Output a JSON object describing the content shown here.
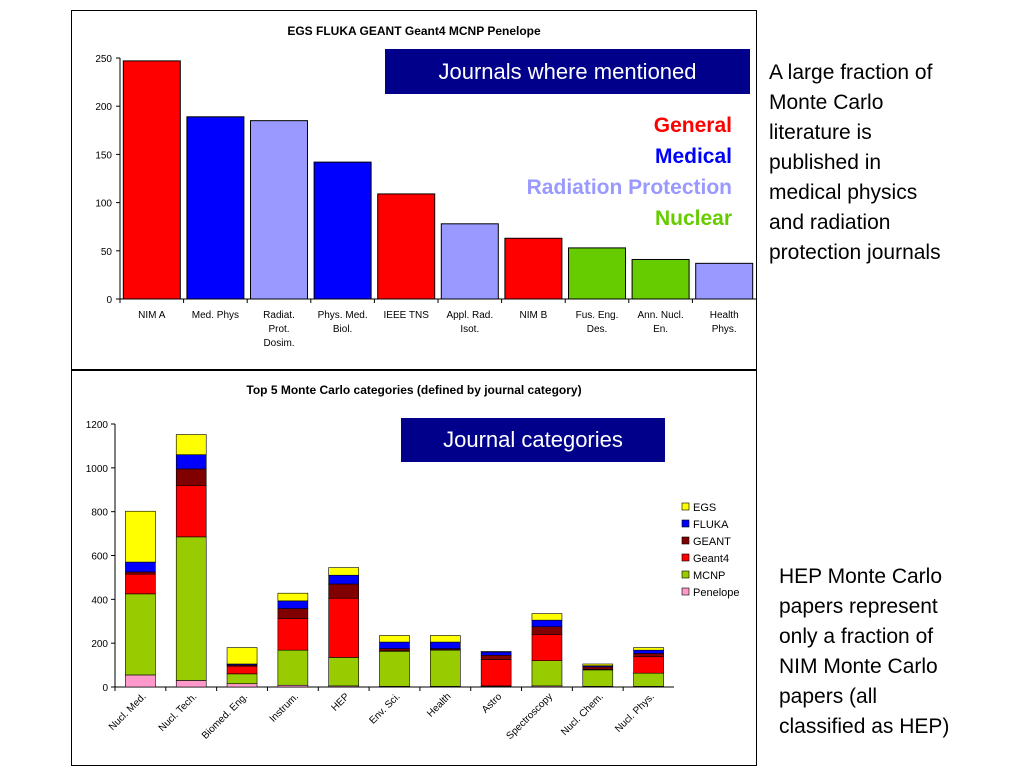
{
  "colors": {
    "general": "#ff0000",
    "medical": "#0000ff",
    "radiation_protection": "#9999ff",
    "nuclear": "#66cc00",
    "banner_bg": "#00008b"
  },
  "top_panel": {
    "banner": "Journals where mentioned",
    "legend": [
      "General",
      "Medical",
      "Radiation Protection",
      "Nuclear"
    ]
  },
  "bottom_panel": {
    "banner": "Journal categories"
  },
  "side_text_1": [
    "A large fraction of",
    "Monte Carlo",
    "literature is",
    "published in",
    "medical physics",
    "and radiation",
    "protection journals"
  ],
  "side_text_2": [
    "HEP Monte Carlo",
    "papers represent",
    "only a fraction of",
    "NIM Monte Carlo",
    "papers (all",
    "classified as HEP)"
  ],
  "chart_data": [
    {
      "type": "bar",
      "title": "EGS FLUKA GEANT Geant4 MCNP Penelope",
      "xlabel": "",
      "ylabel": "",
      "ylim": [
        0,
        250
      ],
      "yticks": [
        0,
        50,
        100,
        150,
        200,
        250
      ],
      "grid": false,
      "categories": [
        "NIM A",
        "Med. Phys",
        "Radiat. Prot. Dosim.",
        "Phys. Med. Biol.",
        "IEEE TNS",
        "Appl. Rad. Isot.",
        "NIM B",
        "Fus. Eng. Des.",
        "Ann. Nucl. En.",
        "Health Phys."
      ],
      "category_lines": [
        [
          "NIM A"
        ],
        [
          "Med. Phys"
        ],
        [
          "Radiat.",
          "Prot.",
          "Dosim."
        ],
        [
          "Phys. Med.",
          "Biol."
        ],
        [
          "IEEE TNS"
        ],
        [
          "Appl. Rad.",
          "Isot."
        ],
        [
          "NIM B"
        ],
        [
          "Fus. Eng.",
          "Des."
        ],
        [
          "Ann. Nucl.",
          "En."
        ],
        [
          "Health",
          "Phys."
        ]
      ],
      "values": [
        247,
        189,
        185,
        142,
        109,
        78,
        63,
        53,
        41,
        37
      ],
      "bar_group": [
        "general",
        "medical",
        "radiation_protection",
        "medical",
        "general",
        "radiation_protection",
        "general",
        "nuclear",
        "nuclear",
        "radiation_protection"
      ]
    },
    {
      "type": "bar",
      "stacked": true,
      "title": "Top 5 Monte Carlo categories (defined by journal category)",
      "xlabel": "",
      "ylabel": "",
      "ylim": [
        0,
        1200
      ],
      "yticks": [
        0,
        200,
        400,
        600,
        800,
        1000,
        1200
      ],
      "grid": false,
      "legend_position": "right",
      "categories": [
        "Nucl. Med.",
        "Nucl. Tech.",
        "Biomed. Eng.",
        "Instrum.",
        "HEP",
        "Env. Sci.",
        "Health",
        "Astro",
        "Spectroscopy",
        "Nucl. Chem.",
        "Nucl. Phys."
      ],
      "series": [
        {
          "name": "Penelope",
          "color": "#ff99cc",
          "values": [
            55,
            30,
            15,
            8,
            5,
            3,
            3,
            2,
            5,
            3,
            3
          ]
        },
        {
          "name": "MCNP",
          "color": "#99cc00",
          "values": [
            370,
            655,
            45,
            160,
            130,
            160,
            165,
            3,
            115,
            75,
            60
          ]
        },
        {
          "name": "Geant4",
          "color": "#ff0000",
          "values": [
            90,
            235,
            35,
            145,
            270,
            2,
            2,
            120,
            120,
            2,
            75
          ]
        },
        {
          "name": "GEANT",
          "color": "#800000",
          "values": [
            10,
            75,
            5,
            45,
            65,
            10,
            5,
            20,
            35,
            12,
            15
          ]
        },
        {
          "name": "FLUKA",
          "color": "#0000ff",
          "values": [
            45,
            65,
            5,
            35,
            40,
            30,
            30,
            15,
            30,
            5,
            15
          ]
        },
        {
          "name": "EGS",
          "color": "#ffff00",
          "values": [
            232,
            92,
            75,
            35,
            35,
            30,
            30,
            2,
            30,
            8,
            12
          ]
        }
      ],
      "legend_order": [
        "EGS",
        "FLUKA",
        "GEANT",
        "Geant4",
        "MCNP",
        "Penelope"
      ]
    }
  ]
}
